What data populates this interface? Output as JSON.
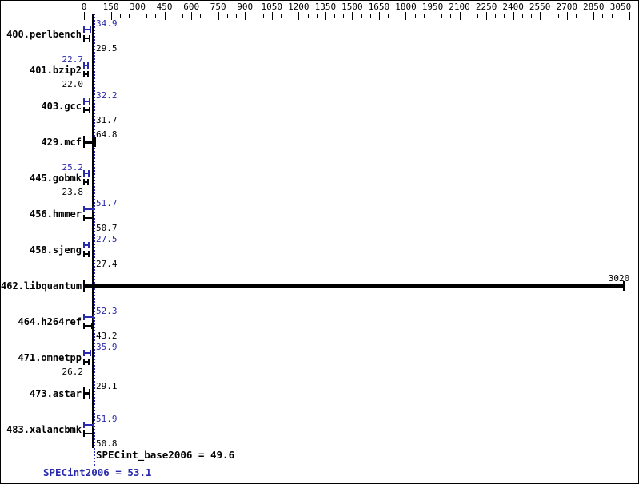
{
  "chart_data": {
    "type": "bar",
    "orientation": "horizontal",
    "title": "",
    "xlabel": "",
    "ylabel": "",
    "axis": {
      "min": 0,
      "max": 3050,
      "minor_step": 50,
      "major_tick_labels": [
        "0",
        "150",
        "300",
        "450",
        "600",
        "750",
        "900",
        "1050",
        "1200",
        "1350",
        "1500",
        "1650",
        "1800",
        "1950",
        "2100",
        "2250",
        "2400",
        "2550",
        "2700",
        "2850",
        "3050"
      ]
    },
    "categories": [
      "400.perlbench",
      "401.bzip2",
      "403.gcc",
      "429.mcf",
      "445.gobmk",
      "456.hmmer",
      "458.sjeng",
      "462.libquantum",
      "464.h264ref",
      "471.omnetpp",
      "473.astar",
      "483.xalancbmk"
    ],
    "series": [
      {
        "name": "SPECint2006 (peak)",
        "color": "#2929ad",
        "values": [
          34.9,
          22.7,
          32.2,
          64.8,
          25.2,
          51.7,
          27.5,
          3020,
          52.3,
          35.9,
          29.1,
          51.9
        ]
      },
      {
        "name": "SPECint_base2006 (base)",
        "color": "#000000",
        "values": [
          29.5,
          22.0,
          31.7,
          64.8,
          23.8,
          50.7,
          27.4,
          3020,
          43.2,
          26.2,
          29.1,
          50.8
        ]
      }
    ],
    "legend_position": "none",
    "grid": false,
    "summary": {
      "base_text": "SPECint_base2006 = 49.6",
      "base_value": 49.6,
      "peak_text": "SPECint2006 = 53.1",
      "peak_value": 53.1
    },
    "colors": {
      "peak_blue": "#2929ad",
      "base_black": "#000000",
      "background": "#ffffff"
    }
  }
}
